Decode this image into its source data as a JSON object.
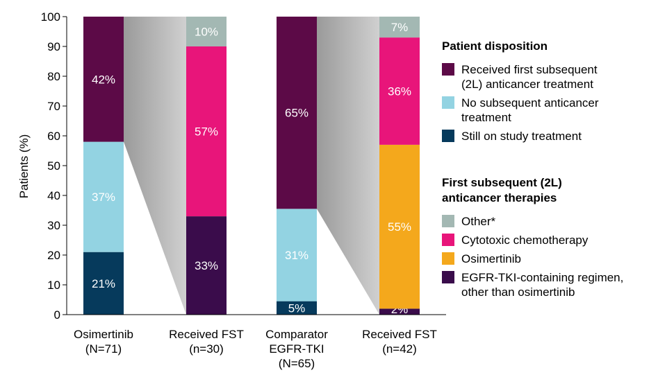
{
  "chart_data": {
    "type": "bar",
    "stacked": true,
    "ylabel": "Patients (%)",
    "ylim": [
      0,
      100
    ],
    "yticks": [
      0,
      10,
      20,
      30,
      40,
      50,
      60,
      70,
      80,
      90,
      100
    ],
    "bars": [
      {
        "name": "osimertinib",
        "label_lines": [
          "Osimertinib",
          "(N=71)"
        ],
        "segments": [
          {
            "category": "still_on_study",
            "value": 21,
            "label": "21%"
          },
          {
            "category": "no_subsequent",
            "value": 37,
            "label": "37%"
          },
          {
            "category": "received_2l",
            "value": 42,
            "label": "42%"
          }
        ]
      },
      {
        "name": "received-fst-osimertinib",
        "label_lines": [
          "Received FST",
          "(n=30)"
        ],
        "segments": [
          {
            "category": "egfr_tki_other",
            "value": 33,
            "label": "33%"
          },
          {
            "category": "chemo",
            "value": 57,
            "label": "57%"
          },
          {
            "category": "other",
            "value": 10,
            "label": "10%"
          }
        ]
      },
      {
        "name": "comparator",
        "label_lines": [
          "Comparator",
          "EGFR-TKI",
          "(N=65)"
        ],
        "segments": [
          {
            "category": "still_on_study",
            "value": 4.5,
            "label": "5%"
          },
          {
            "category": "no_subsequent",
            "value": 31,
            "label": "31%"
          },
          {
            "category": "received_2l",
            "value": 64.5,
            "label": "65%"
          }
        ]
      },
      {
        "name": "received-fst-comparator",
        "label_lines": [
          "Received FST",
          "(n=42)"
        ],
        "segments": [
          {
            "category": "egfr_tki_other",
            "value": 2,
            "label": "2%"
          },
          {
            "category": "osimertinib_2l",
            "value": 55,
            "label": "55%"
          },
          {
            "category": "chemo",
            "value": 36,
            "label": "36%"
          },
          {
            "category": "other",
            "value": 7,
            "label": "7%"
          }
        ]
      }
    ],
    "connectors": [
      {
        "from_bar": 0,
        "to_bar": 1,
        "from_low": 58,
        "from_high": 100
      },
      {
        "from_bar": 2,
        "to_bar": 3,
        "from_low": 35.5,
        "from_high": 100
      }
    ],
    "legend_groups": [
      {
        "title_lines": [
          "Patient disposition"
        ],
        "items": [
          {
            "category": "received_2l",
            "label_lines": [
              "Received first subsequent",
              "(2L) anticancer treatment"
            ]
          },
          {
            "category": "no_subsequent",
            "label_lines": [
              "No subsequent anticancer",
              "treatment"
            ]
          },
          {
            "category": "still_on_study",
            "label_lines": [
              "Still on study treatment"
            ]
          }
        ]
      },
      {
        "title_lines": [
          "First subsequent (2L)",
          "anticancer therapies"
        ],
        "items": [
          {
            "category": "other",
            "label_lines": [
              "Other*"
            ]
          },
          {
            "category": "chemo",
            "label_lines": [
              "Cytotoxic chemotherapy"
            ]
          },
          {
            "category": "osimertinib_2l",
            "label_lines": [
              "Osimertinib"
            ]
          },
          {
            "category": "egfr_tki_other",
            "label_lines": [
              "EGFR-TKI-containing regimen,",
              "other than osimertinib"
            ]
          }
        ]
      }
    ],
    "colors": {
      "received_2l": "#5c0a47",
      "no_subsequent": "#93d3e2",
      "still_on_study": "#063a5c",
      "other": "#a3b8b3",
      "chemo": "#e8157a",
      "osimertinib_2l": "#f4a81c",
      "egfr_tki_other": "#3a0c4b",
      "connector": "#b8b8b8"
    }
  }
}
